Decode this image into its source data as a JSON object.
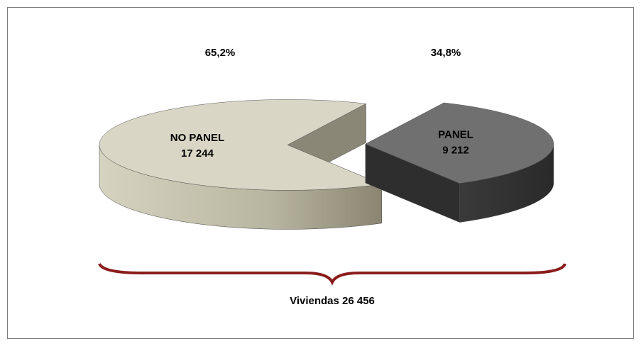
{
  "chart_data": {
    "type": "pie3d",
    "categories": [
      "NO PANEL",
      "PANEL"
    ],
    "values": [
      17244,
      9212
    ],
    "value_labels": [
      "17 244",
      "9 212"
    ],
    "percent_labels": [
      "65,2%",
      "34,8%"
    ],
    "colors": [
      "#d9d6c5",
      "#707070"
    ],
    "annotation": "Viviendas 26 456"
  }
}
